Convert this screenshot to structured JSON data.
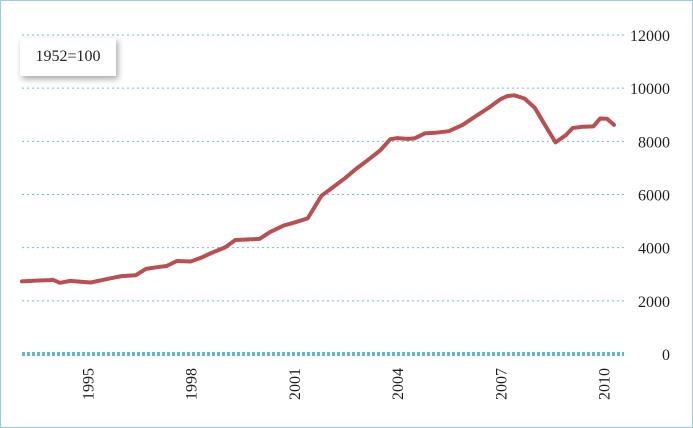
{
  "chart_data": {
    "type": "line",
    "annotation": "1952=100",
    "x_ticks": [
      "1995",
      "1998",
      "2001",
      "2004",
      "2007",
      "2010"
    ],
    "y_ticks": [
      "0",
      "2000",
      "4000",
      "6000",
      "8000",
      "10000",
      "12000"
    ],
    "xlim": [
      1993.1,
      2010.3
    ],
    "ylim": [
      0,
      12000
    ],
    "grid": true,
    "y_axis_side": "right",
    "series": [
      {
        "color": "#b94f50",
        "x": [
          1993.1,
          1993.5,
          1993.9,
          1994.0,
          1994.2,
          1994.5,
          1994.8,
          1995.1,
          1995.5,
          1995.8,
          1996.0,
          1996.4,
          1996.7,
          1997.0,
          1997.3,
          1997.6,
          1998.0,
          1998.3,
          1998.6,
          1999.0,
          1999.3,
          1999.7,
          2000.0,
          2000.3,
          2000.7,
          2001.0,
          2001.4,
          2001.8,
          2002.1,
          2002.5,
          2002.8,
          2003.1,
          2003.5,
          2003.8,
          2004.0,
          2004.3,
          2004.5,
          2004.8,
          2005.1,
          2005.5,
          2005.9,
          2006.3,
          2006.7,
          2007.0,
          2007.2,
          2007.4,
          2007.7,
          2008.0,
          2008.3,
          2008.6,
          2008.9,
          2009.1,
          2009.4,
          2009.7,
          2009.9,
          2010.1,
          2010.3
        ],
        "values": [
          2730,
          2760,
          2780,
          2790,
          2680,
          2750,
          2720,
          2690,
          2800,
          2880,
          2930,
          2960,
          3200,
          3260,
          3310,
          3500,
          3480,
          3620,
          3800,
          4010,
          4290,
          4310,
          4330,
          4580,
          4830,
          4940,
          5100,
          5950,
          6240,
          6630,
          6960,
          7250,
          7650,
          8080,
          8120,
          8090,
          8110,
          8300,
          8320,
          8380,
          8620,
          8960,
          9300,
          9580,
          9700,
          9730,
          9610,
          9260,
          8600,
          7960,
          8230,
          8500,
          8550,
          8560,
          8860,
          8850,
          8620
        ]
      }
    ]
  }
}
